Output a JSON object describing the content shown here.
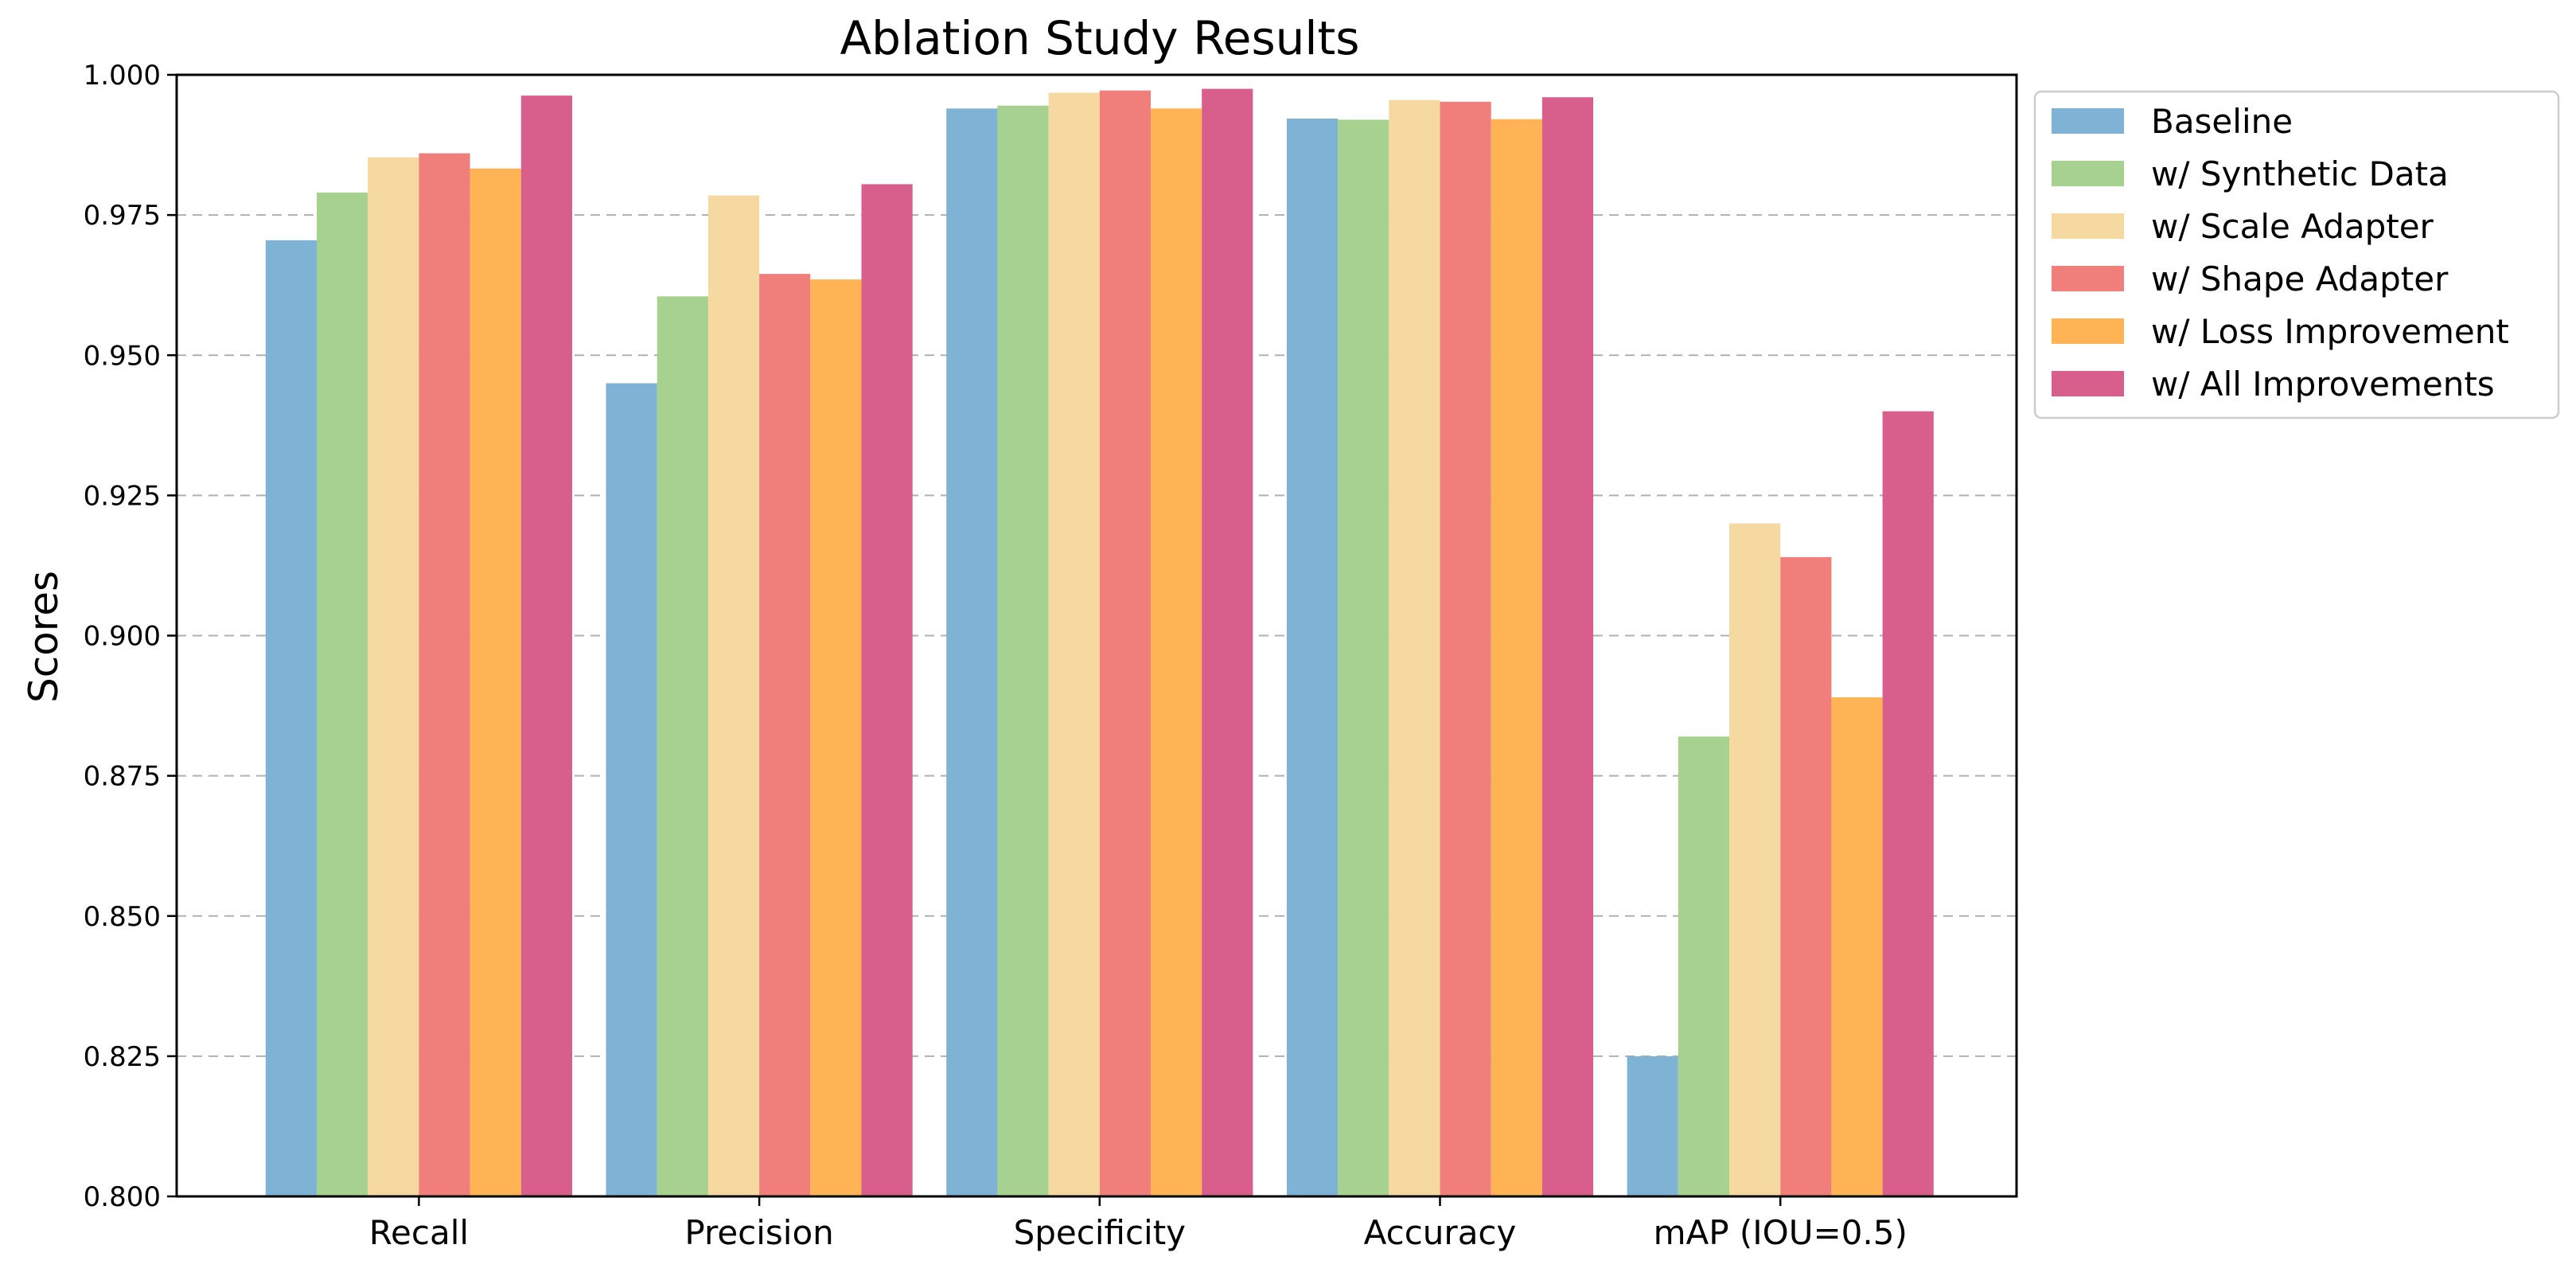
{
  "chart_data": {
    "type": "bar",
    "title": "Ablation Study Results",
    "xlabel": "",
    "ylabel": "Scores",
    "ylim": [
      0.8,
      1.0
    ],
    "yticks": [
      0.8,
      0.825,
      0.85,
      0.875,
      0.9,
      0.925,
      0.95,
      0.975,
      1.0
    ],
    "ytick_labels": [
      "0.800",
      "0.825",
      "0.850",
      "0.875",
      "0.900",
      "0.925",
      "0.950",
      "0.975",
      "1.000"
    ],
    "grid": "y, dashed",
    "legend_position": "outside top-right",
    "categories": [
      "Recall",
      "Precision",
      "Specificity",
      "Accuracy",
      "mAP (IOU=0.5)"
    ],
    "series": [
      {
        "name": "Baseline",
        "color": "#7fb3d5",
        "values": [
          0.9705,
          0.945,
          0.994,
          0.9922,
          0.825
        ]
      },
      {
        "name": "w/ Synthetic Data",
        "color": "#a7d18e",
        "values": [
          0.979,
          0.9605,
          0.9945,
          0.992,
          0.882
        ]
      },
      {
        "name": "w/ Scale Adapter",
        "color": "#f5d9a0",
        "values": [
          0.9853,
          0.9785,
          0.9968,
          0.9955,
          0.92
        ]
      },
      {
        "name": "w/ Shape Adapter",
        "color": "#f07f7c",
        "values": [
          0.986,
          0.9645,
          0.9972,
          0.9952,
          0.914
        ]
      },
      {
        "name": "w/ Loss Improvement",
        "color": "#feb455",
        "values": [
          0.9833,
          0.9635,
          0.994,
          0.9921,
          0.889
        ]
      },
      {
        "name": "w/ All Improvements",
        "color": "#d85f8b",
        "values": [
          0.9963,
          0.9805,
          0.9975,
          0.996,
          0.94
        ]
      }
    ]
  }
}
